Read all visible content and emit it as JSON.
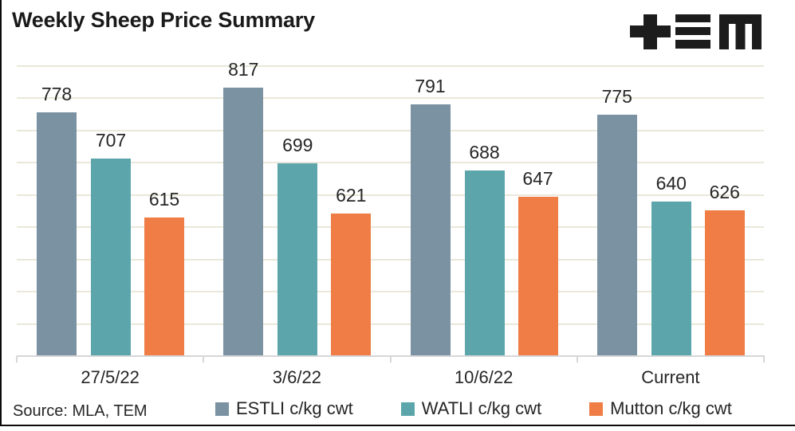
{
  "title": "Weekly Sheep Price Summary",
  "source": "Source: MLA, TEM",
  "header": {
    "logo_icon": "tem-logo"
  },
  "chart_data": {
    "type": "bar",
    "title": "Weekly Sheep Price Summary",
    "categories": [
      "27/5/22",
      "3/6/22",
      "10/6/22",
      "Current"
    ],
    "series": [
      {
        "name": "ESTLI c/kg cwt",
        "color": "#7b92a3",
        "values": [
          778,
          817,
          791,
          775
        ]
      },
      {
        "name": "WATLI c/kg cwt",
        "color": "#5ca5aa",
        "values": [
          707,
          699,
          688,
          640
        ]
      },
      {
        "name": "Mutton c/kg cwt",
        "color": "#ef7d45",
        "values": [
          615,
          621,
          647,
          626
        ]
      }
    ],
    "xlabel": "",
    "ylabel": "",
    "ylim": [
      400,
      850
    ],
    "gridline_step": 50,
    "grid": true,
    "data_labels": true,
    "legend_position": "bottom",
    "source_note": "Source: MLA, TEM"
  }
}
